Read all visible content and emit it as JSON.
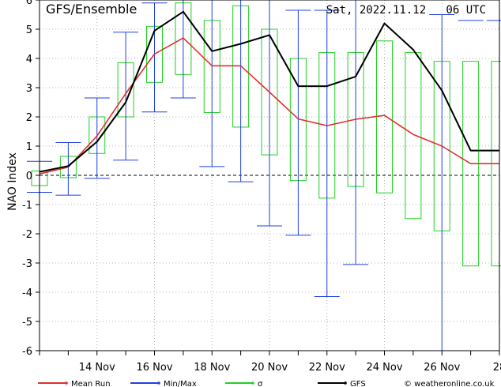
{
  "chart_data": {
    "type": "line",
    "title": "GFS/Ensemble",
    "date_label": "Sat, 2022.11.12   06 UTC",
    "ylabel": "NAO Index",
    "xlabel": "",
    "ylim": [
      -6,
      6
    ],
    "yticks": [
      -6,
      -5,
      -4,
      -3,
      -2,
      -1,
      0,
      1,
      2,
      3,
      4,
      5,
      6
    ],
    "xlim": [
      "2022-11-12",
      "2022-11-28"
    ],
    "xticks": [
      {
        "date": "2022-11-14",
        "label": "14 Nov"
      },
      {
        "date": "2022-11-16",
        "label": "16 Nov"
      },
      {
        "date": "2022-11-18",
        "label": "18 Nov"
      },
      {
        "date": "2022-11-20",
        "label": "20 Nov"
      },
      {
        "date": "2022-11-22",
        "label": "22 Nov"
      },
      {
        "date": "2022-11-24",
        "label": "24 Nov"
      },
      {
        "date": "2022-11-26",
        "label": "26 Nov"
      },
      {
        "date": "2022-11-28",
        "label": "28"
      }
    ],
    "grid": true,
    "x": [
      "2022-11-12",
      "2022-11-13",
      "2022-11-14",
      "2022-11-15",
      "2022-11-16",
      "2022-11-17",
      "2022-11-18",
      "2022-11-19",
      "2022-11-20",
      "2022-11-21",
      "2022-11-22",
      "2022-11-23",
      "2022-11-24",
      "2022-11-25",
      "2022-11-26",
      "2022-11-27",
      "2022-11-28"
    ],
    "series": [
      {
        "name": "Mean Run",
        "color": "#e03030",
        "values": [
          0.05,
          0.28,
          1.35,
          2.8,
          4.15,
          4.7,
          3.75,
          3.75,
          2.85,
          1.93,
          1.7,
          1.92,
          2.05,
          1.4,
          1.0,
          0.4,
          0.4
        ]
      },
      {
        "name": "GFS",
        "color": "#000000",
        "values": [
          0.12,
          0.32,
          1.15,
          2.5,
          4.95,
          5.6,
          4.25,
          4.5,
          4.8,
          3.05,
          3.05,
          3.38,
          5.2,
          4.3,
          2.9,
          0.85,
          0.85
        ]
      }
    ],
    "minmax": {
      "name": "Min/Max",
      "color": "#2040e0",
      "min": [
        -0.58,
        -0.68,
        -0.1,
        0.52,
        2.17,
        2.65,
        0.3,
        -0.22,
        -1.73,
        -2.05,
        -4.15,
        -3.05,
        null,
        null,
        -6.0,
        null,
        null
      ],
      "max": [
        0.48,
        1.12,
        2.65,
        4.9,
        5.9,
        6.0,
        6.0,
        6.0,
        6.0,
        5.65,
        5.65,
        6.0,
        null,
        null,
        5.5,
        5.3,
        5.3
      ]
    },
    "sigma": {
      "name": "σ",
      "color": "#20d020",
      "low": [
        -0.35,
        -0.08,
        0.75,
        2.0,
        3.18,
        3.45,
        2.15,
        1.65,
        0.7,
        -0.18,
        -0.78,
        -0.38,
        -0.6,
        -1.48,
        -1.9,
        -3.1,
        -3.1
      ],
      "high": [
        0.15,
        0.65,
        2.0,
        3.85,
        5.1,
        5.9,
        5.3,
        5.8,
        5.0,
        4.0,
        4.2,
        4.2,
        4.6,
        4.2,
        3.9,
        3.9,
        3.9
      ]
    },
    "legend": [
      {
        "label": "Mean Run",
        "color": "#e03030"
      },
      {
        "label": "Min/Max",
        "color": "#2040e0"
      },
      {
        "label": "σ",
        "color": "#20d020"
      },
      {
        "label": "GFS",
        "color": "#000000"
      }
    ],
    "legend_placement": "bottom",
    "credit": "© weatheronline.co.uk"
  }
}
